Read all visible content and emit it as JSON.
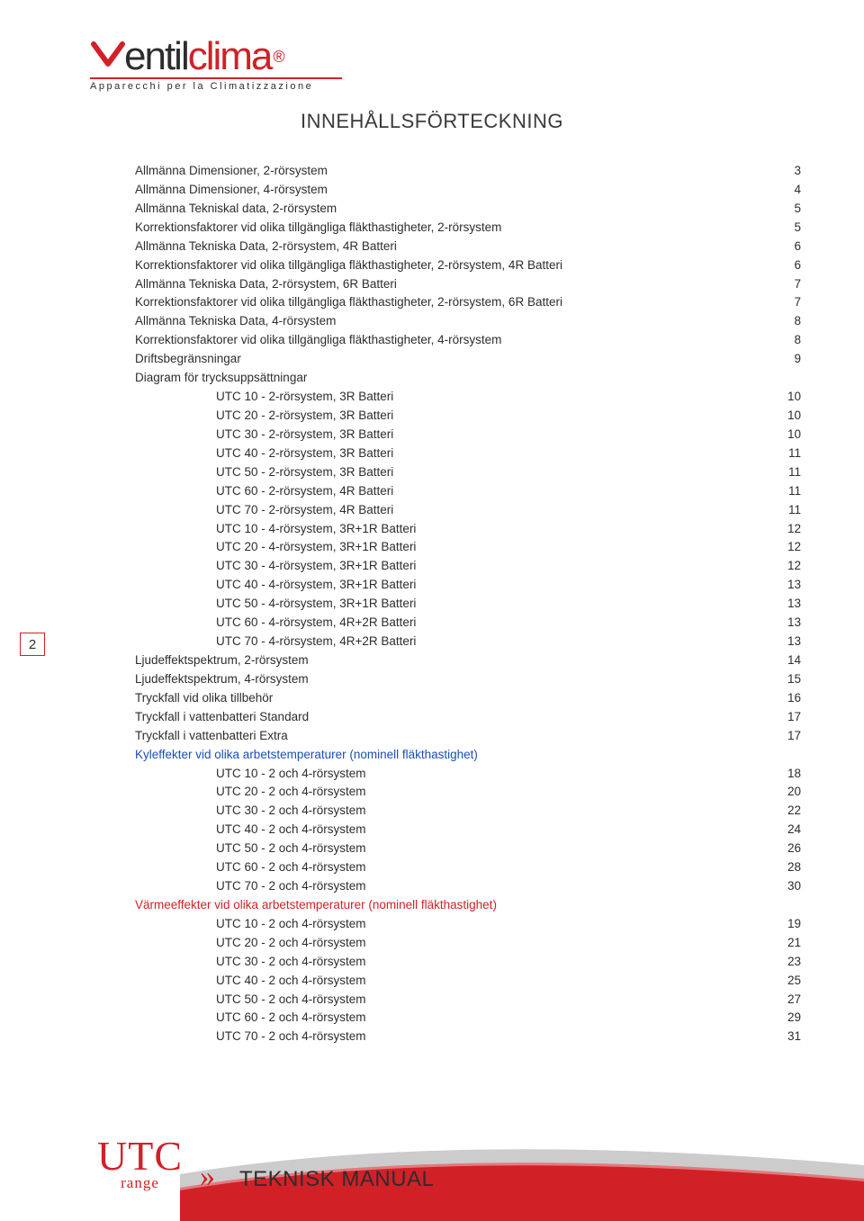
{
  "logo": {
    "entil": "entil",
    "clima": "clima",
    "reg": "®",
    "tagline": "Apparecchi per la Climatizzazione",
    "color_dark": "#2d2d2d",
    "color_red": "#d22027"
  },
  "title": "INNEHÅLLSFÖRTECKNING",
  "page_number": "2",
  "toc": [
    {
      "label": "Allmänna Dimensioner, 2-rörsystem",
      "page": "3",
      "indent": false
    },
    {
      "label": "Allmänna Dimensioner, 4-rörsystem",
      "page": "4",
      "indent": false
    },
    {
      "label": "Allmänna Tekniskal data, 2-rörsystem",
      "page": "5",
      "indent": false
    },
    {
      "label": "Korrektionsfaktorer vid olika tillgängliga fläkthastigheter, 2-rörsystem",
      "page": "5",
      "indent": false
    },
    {
      "label": "Allmänna Tekniska Data, 2-rörsystem, 4R Batteri",
      "page": "6",
      "indent": false
    },
    {
      "label": "Korrektionsfaktorer vid olika tillgängliga fläkthastigheter, 2-rörsystem, 4R Batteri",
      "page": "6",
      "indent": false
    },
    {
      "label": "Allmänna Tekniska Data, 2-rörsystem, 6R Batteri",
      "page": "7",
      "indent": false
    },
    {
      "label": "Korrektionsfaktorer vid olika tillgängliga fläkthastigheter, 2-rörsystem, 6R Batteri",
      "page": "7",
      "indent": false
    },
    {
      "label": "Allmänna Tekniska Data, 4-rörsystem",
      "page": "8",
      "indent": false
    },
    {
      "label": "Korrektionsfaktorer vid olika tillgängliga fläkthastigheter, 4-rörsystem",
      "page": "8",
      "indent": false
    },
    {
      "label": "Driftsbegränsningar",
      "page": "9",
      "indent": false
    },
    {
      "label": "Diagram för trycksuppsättningar",
      "page": "",
      "indent": false
    },
    {
      "label": "UTC 10 - 2-rörsystem, 3R Batteri",
      "page": "10",
      "indent": true
    },
    {
      "label": "UTC 20 - 2-rörsystem, 3R Batteri",
      "page": "10",
      "indent": true
    },
    {
      "label": "UTC 30 - 2-rörsystem, 3R Batteri",
      "page": "10",
      "indent": true
    },
    {
      "label": "UTC 40 - 2-rörsystem, 3R Batteri",
      "page": "11",
      "indent": true
    },
    {
      "label": "UTC 50 - 2-rörsystem, 3R Batteri",
      "page": "11",
      "indent": true
    },
    {
      "label": "UTC 60 - 2-rörsystem, 4R Batteri",
      "page": "11",
      "indent": true
    },
    {
      "label": "UTC 70 - 2-rörsystem, 4R Batteri",
      "page": "11",
      "indent": true
    },
    {
      "label": "UTC 10 - 4-rörsystem, 3R+1R Batteri",
      "page": "12",
      "indent": true
    },
    {
      "label": "UTC 20 - 4-rörsystem, 3R+1R Batteri",
      "page": "12",
      "indent": true
    },
    {
      "label": "UTC 30 - 4-rörsystem, 3R+1R Batteri",
      "page": "12",
      "indent": true
    },
    {
      "label": "UTC 40 - 4-rörsystem, 3R+1R Batteri",
      "page": "13",
      "indent": true
    },
    {
      "label": "UTC 50 - 4-rörsystem, 3R+1R Batteri",
      "page": "13",
      "indent": true
    },
    {
      "label": "UTC 60 - 4-rörsystem, 4R+2R Batteri",
      "page": "13",
      "indent": true
    },
    {
      "label": "UTC 70 - 4-rörsystem, 4R+2R Batteri",
      "page": "13",
      "indent": true
    },
    {
      "label": "Ljudeffektspektrum, 2-rörsystem",
      "page": "14",
      "indent": false
    },
    {
      "label": "Ljudeffektspektrum, 4-rörsystem",
      "page": "15",
      "indent": false
    },
    {
      "label": "Tryckfall vid olika tillbehör",
      "page": "16",
      "indent": false
    },
    {
      "label": "Tryckfall i vattenbatteri Standard",
      "page": "17",
      "indent": false
    },
    {
      "label": "Tryckfall i vattenbatteri Extra",
      "page": "17",
      "indent": false
    },
    {
      "label": "Kyleffekter vid olika arbetstemperaturer (nominell fläkthastighet)",
      "page": "",
      "indent": false,
      "cls": "blue"
    },
    {
      "label": "UTC 10 - 2 och 4-rörsystem",
      "page": "18",
      "indent": true
    },
    {
      "label": "UTC 20 - 2 och 4-rörsystem",
      "page": "20",
      "indent": true
    },
    {
      "label": "UTC 30 - 2 och 4-rörsystem",
      "page": "22",
      "indent": true
    },
    {
      "label": "UTC 40 - 2 och 4-rörsystem",
      "page": "24",
      "indent": true
    },
    {
      "label": "UTC 50 - 2 och 4-rörsystem",
      "page": "26",
      "indent": true
    },
    {
      "label": "UTC 60 - 2 och 4-rörsystem",
      "page": "28",
      "indent": true
    },
    {
      "label": "UTC 70 - 2 och 4-rörsystem",
      "page": "30",
      "indent": true
    },
    {
      "label": "Värmeeffekter vid olika arbetstemperaturer (nominell fläkthastighet)",
      "page": "",
      "indent": false,
      "cls": "red"
    },
    {
      "label": "UTC 10 - 2 och 4-rörsystem",
      "page": "19",
      "indent": true
    },
    {
      "label": "UTC 20 - 2 och 4-rörsystem",
      "page": "21",
      "indent": true
    },
    {
      "label": "UTC 30 - 2 och 4-rörsystem",
      "page": "23",
      "indent": true
    },
    {
      "label": "UTC 40 - 2 och 4-rörsystem",
      "page": "25",
      "indent": true
    },
    {
      "label": "UTC 50 - 2 och 4-rörsystem",
      "page": "27",
      "indent": true
    },
    {
      "label": "UTC 60 - 2 och 4-rörsystem",
      "page": "29",
      "indent": true
    },
    {
      "label": "UTC 70 - 2 och 4-rörsystem",
      "page": "31",
      "indent": true
    }
  ],
  "footer": {
    "utc": "UTC",
    "range": "range",
    "chev": "»",
    "manual": "TEKNISK MANUAL",
    "swoosh_fill": "#d22027",
    "swoosh_grey": "#c7c7c7"
  }
}
